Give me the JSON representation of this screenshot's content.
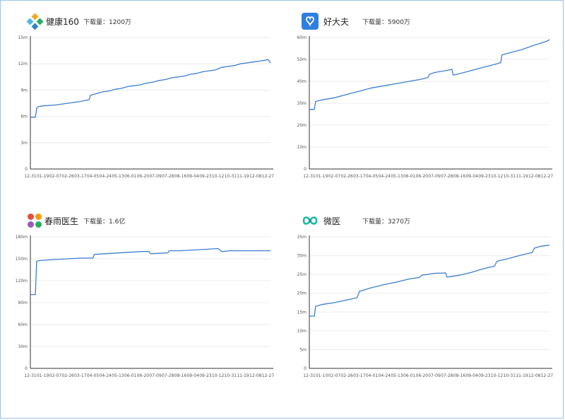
{
  "panels": [
    {
      "app_name": "健康160",
      "download_label": "下载量：",
      "download_value": "1200万",
      "logo_icon": "jiankang160-logo-icon"
    },
    {
      "app_name": "好大夫",
      "download_label": "下载量：",
      "download_value": "5900万",
      "logo_icon": "haodaifu-logo-icon"
    },
    {
      "app_name": "春雨医生",
      "download_label": "下载量：",
      "download_value": "1.6亿",
      "logo_icon": "chunyu-logo-icon"
    },
    {
      "app_name": "微医",
      "download_label": "下载量：",
      "download_value": "3270万",
      "logo_icon": "weiyi-logo-icon"
    }
  ],
  "chart_data": [
    {
      "type": "line",
      "title": "",
      "line_color": "#3d7fcf",
      "grid": true,
      "x_tick_labels": [
        "12-31",
        "01-19",
        "02-07",
        "02-26",
        "03-17",
        "04-05",
        "04-24",
        "05-13",
        "06-01",
        "06-20",
        "07-09",
        "07-28",
        "08-16",
        "09-04",
        "09-23",
        "10-12",
        "10-31",
        "11-19",
        "12-08",
        "12-27"
      ],
      "y_tick_labels": [
        "0",
        "3m",
        "6m",
        "9m",
        "12m",
        "15m"
      ],
      "ylim": [
        0,
        15
      ],
      "series": [
        {
          "x": [
            0,
            0.4,
            0.5,
            0.6,
            1,
            2,
            3,
            4,
            4.7,
            4.8,
            5.3,
            5.8,
            6.3,
            6.8,
            7.3,
            7.8,
            8.3,
            8.8,
            9.3,
            9.8,
            10.3,
            10.8,
            11.3,
            11.8,
            12.3,
            12.8,
            13.3,
            13.8,
            14.3,
            14.8,
            15.3,
            15.8,
            16.3,
            16.8,
            17.3,
            17.8,
            18.3,
            18.8,
            19,
            19.2
          ],
          "y": [
            5.9,
            5.9,
            6.9,
            7.1,
            7.2,
            7.3,
            7.5,
            7.7,
            7.9,
            8.4,
            8.6,
            8.8,
            8.9,
            9.1,
            9.2,
            9.4,
            9.5,
            9.6,
            9.8,
            9.9,
            10.1,
            10.2,
            10.4,
            10.5,
            10.6,
            10.8,
            10.9,
            11.1,
            11.2,
            11.3,
            11.6,
            11.7,
            11.8,
            12.0,
            12.1,
            12.2,
            12.3,
            12.4,
            12.5,
            12.1
          ]
        }
      ]
    },
    {
      "type": "line",
      "title": "",
      "line_color": "#3d7fcf",
      "grid": true,
      "x_tick_labels": [
        "12-31",
        "01-19",
        "02-07",
        "02-26",
        "03-17",
        "04-05",
        "04-24",
        "05-13",
        "06-01",
        "06-20",
        "07-09",
        "07-28",
        "08-16",
        "09-04",
        "09-23",
        "10-12",
        "10-31",
        "11-19",
        "12-08",
        "12-27"
      ],
      "y_tick_labels": [
        "0",
        "10m",
        "20m",
        "30m",
        "40m",
        "50m",
        "60m"
      ],
      "ylim": [
        0,
        60
      ],
      "series": [
        {
          "x": [
            0,
            0.4,
            0.5,
            1,
            2,
            3,
            4,
            5,
            6,
            7,
            8,
            9,
            9.5,
            9.6,
            10,
            11,
            11.4,
            11.5,
            12,
            13,
            14,
            15,
            15.3,
            15.4,
            16,
            17,
            18,
            19,
            19.2
          ],
          "y": [
            27.2,
            27.2,
            30.8,
            31.5,
            32.5,
            34.0,
            35.5,
            37.0,
            38.0,
            39.0,
            40.0,
            41.0,
            41.8,
            43.2,
            44.0,
            45.0,
            45.5,
            42.8,
            43.5,
            45.0,
            46.5,
            48.0,
            48.5,
            52.0,
            53.0,
            54.5,
            56.5,
            58.3,
            59.0
          ]
        }
      ]
    },
    {
      "type": "line",
      "title": "",
      "line_color": "#3d7fcf",
      "grid": true,
      "x_tick_labels": [
        "12-31",
        "01-19",
        "02-07",
        "02-26",
        "03-17",
        "04-05",
        "04-24",
        "05-13",
        "06-01",
        "06-20",
        "07-09",
        "07-28",
        "08-16",
        "09-04",
        "09-23",
        "10-12",
        "10-31",
        "11-19",
        "12-08",
        "12-27"
      ],
      "y_tick_labels": [
        "0",
        "30m",
        "60m",
        "90m",
        "120m",
        "150m",
        "180m"
      ],
      "ylim": [
        0,
        180
      ],
      "series": [
        {
          "x": [
            0,
            0.4,
            0.5,
            1,
            2,
            3,
            4,
            5,
            5.1,
            6,
            7,
            8,
            9,
            9.5,
            9.6,
            11,
            11.1,
            12,
            13,
            14,
            15,
            15.3,
            15.4,
            16,
            17,
            18,
            19,
            19.2
          ],
          "y": [
            101,
            101,
            147,
            148,
            149,
            150,
            151,
            151,
            156,
            157,
            158,
            159,
            160,
            160,
            157,
            158,
            161,
            161,
            162,
            163,
            164,
            160,
            160,
            161,
            161,
            161,
            161,
            161
          ]
        }
      ]
    },
    {
      "type": "line",
      "title": "",
      "line_color": "#3d7fcf",
      "grid": true,
      "x_tick_labels": [
        "12-31",
        "01-10",
        "02-07",
        "02-26",
        "03-17",
        "04-01",
        "04-24",
        "05-13",
        "06-01",
        "06-20",
        "07-09",
        "07-28",
        "08-16",
        "09-04",
        "09-23",
        "10-12",
        "10-31",
        "11-19",
        "12-08",
        "12-27"
      ],
      "y_tick_labels": [
        "0",
        "5m",
        "10m",
        "15m",
        "20m",
        "25m",
        "30m",
        "35m"
      ],
      "ylim": [
        0,
        35
      ],
      "series": [
        {
          "x": [
            0,
            0.4,
            0.5,
            1,
            2,
            3,
            3.8,
            3.9,
            4,
            5,
            6,
            7,
            8,
            8.8,
            9,
            9.8,
            10,
            10.9,
            11,
            12,
            13,
            14,
            14.8,
            15,
            16,
            17,
            17.8,
            18,
            18.5,
            19,
            19.2
          ],
          "y": [
            13.9,
            13.9,
            16.5,
            17.0,
            17.5,
            18.2,
            18.8,
            19.5,
            20.5,
            21.5,
            22.3,
            23.0,
            23.8,
            24.2,
            24.8,
            25.2,
            25.3,
            25.4,
            24.3,
            24.8,
            25.6,
            26.6,
            27.2,
            28.5,
            29.3,
            30.2,
            30.8,
            32.0,
            32.5,
            32.7,
            32.8
          ]
        }
      ]
    }
  ]
}
